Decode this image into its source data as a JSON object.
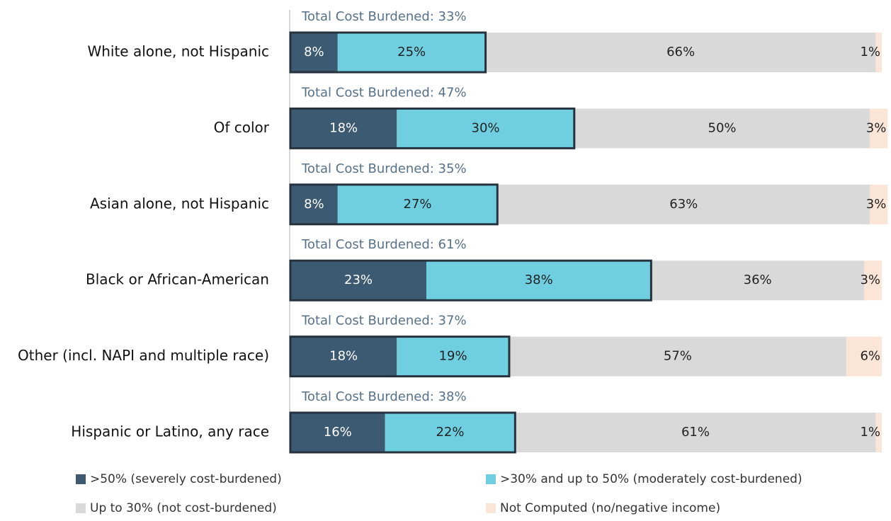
{
  "chart_data": {
    "type": "stacked-bar-horizontal",
    "categories": [
      "White alone, not Hispanic",
      "Of color",
      "Asian alone, not Hispanic",
      "Black or African-American",
      "Other (incl. NAPI and multiple race)",
      "Hispanic or Latino, any race"
    ],
    "annotations": [
      "Total Cost Burdened: 33%",
      "Total Cost Burdened: 47%",
      "Total Cost Burdened: 35%",
      "Total Cost Burdened: 61%",
      "Total Cost Burdened: 37%",
      "Total Cost Burdened: 38%"
    ],
    "series": [
      {
        "name": ">50% (severely cost-burdened)",
        "color": "#3d5a73",
        "values": [
          8,
          18,
          8,
          23,
          18,
          16
        ],
        "value_labels": [
          "8%",
          "18%",
          "8%",
          "23%",
          "18%",
          "16%"
        ]
      },
      {
        "name": ">30% and up to 50% (moderately cost-burdened)",
        "color": "#6fcfe0",
        "values": [
          25,
          30,
          27,
          38,
          19,
          22
        ],
        "value_labels": [
          "25%",
          "30%",
          "27%",
          "38%",
          "19%",
          "22%"
        ]
      },
      {
        "name": "Up to 30% (not cost-burdened)",
        "color": "#d9d9d9",
        "values": [
          66,
          50,
          63,
          36,
          57,
          61
        ],
        "value_labels": [
          "66%",
          "50%",
          "63%",
          "36%",
          "57%",
          "61%"
        ]
      },
      {
        "name": "Not Computed (no/negative income)",
        "color": "#fbe5d6",
        "values": [
          1,
          3,
          3,
          3,
          6,
          1
        ],
        "value_labels": [
          "1%",
          "3%",
          "3%",
          "3%",
          "6%",
          "1%"
        ]
      }
    ]
  }
}
